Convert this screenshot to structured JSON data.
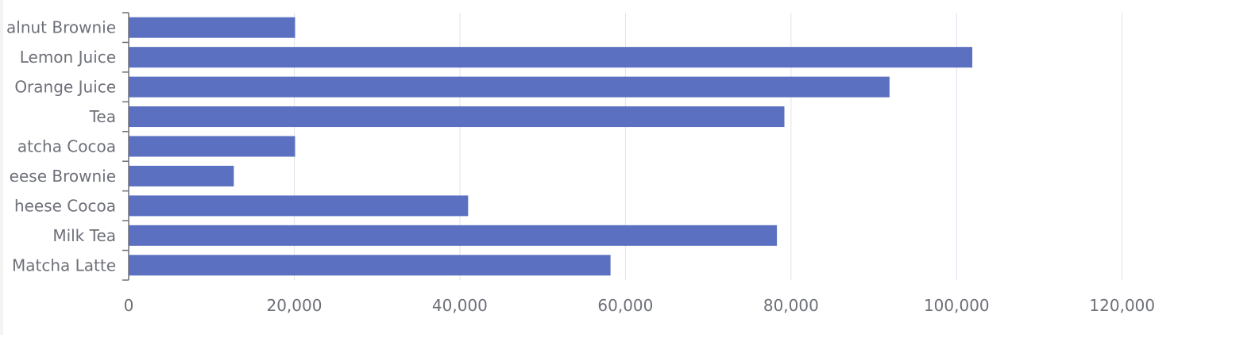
{
  "chart_data": {
    "type": "bar",
    "orientation": "horizontal",
    "categories": [
      "Walnut Brownie",
      "Lemon Juice",
      "Orange Juice",
      "Tea",
      "Matcha Cocoa",
      "Cheese Brownie",
      "Cheese Cocoa",
      "Milk Tea",
      "Matcha Latte"
    ],
    "category_labels_shown": [
      "alnut Brownie",
      "Lemon Juice",
      "Orange Juice",
      "Tea",
      "atcha Cocoa",
      "eese Brownie",
      "heese Cocoa",
      "Milk Tea",
      "Matcha Latte"
    ],
    "series": [
      {
        "values": [
          20100,
          101900,
          91900,
          79200,
          20100,
          12700,
          41000,
          78300,
          58200
        ]
      }
    ],
    "xlim": [
      0,
      130000
    ],
    "x_ticks": [
      0,
      20000,
      40000,
      60000,
      80000,
      100000,
      120000
    ],
    "x_tick_labels": [
      "0",
      "20,000",
      "40,000",
      "60,000",
      "80,000",
      "100,000",
      "120,000"
    ],
    "grid": "vertical",
    "legend": "none",
    "title": "",
    "xlabel": "",
    "ylabel": "",
    "colors": {
      "bar": "#5b70c0",
      "grid": "#e0e3ee",
      "axis": "#6e7079",
      "label": "#6e7079"
    }
  }
}
